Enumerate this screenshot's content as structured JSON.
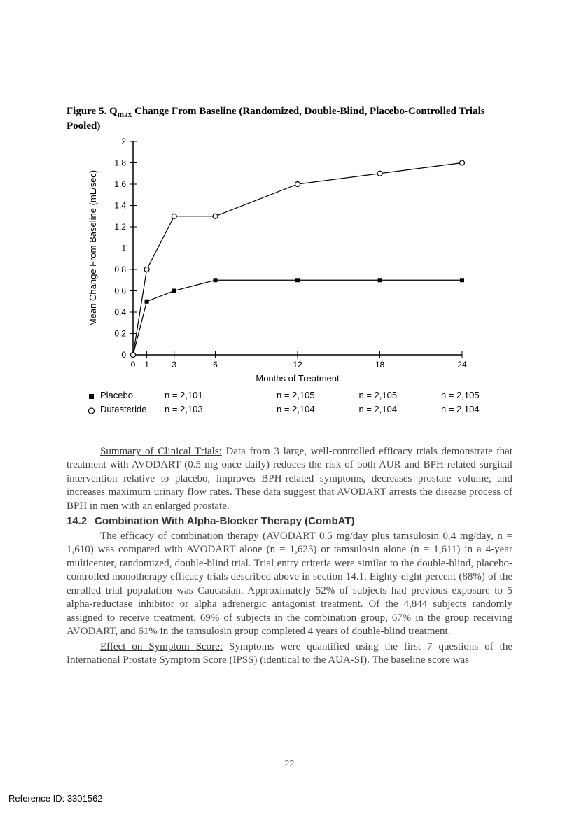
{
  "figure": {
    "label_prefix": "Figure 5. Q",
    "label_sub": "max",
    "label_rest": " Change From Baseline (Randomized, Double-Blind, Placebo-Controlled Trials Pooled)",
    "chart": {
      "type": "line",
      "background_color": "#ffffff",
      "axis_color": "#000000",
      "tick_color": "#000000",
      "text_color": "#000000",
      "font_family": "Arial",
      "axis_fontsize": 12,
      "label_fontsize": 13,
      "line_width": 1.2,
      "xlim": [
        0,
        24
      ],
      "ylim": [
        0,
        2
      ],
      "xticks": [
        0,
        1,
        3,
        6,
        12,
        18,
        24
      ],
      "yticks": [
        0,
        0.2,
        0.4,
        0.6,
        0.8,
        1.0,
        1.2,
        1.4,
        1.6,
        1.8,
        2.0
      ],
      "ytick_labels": [
        "0",
        "0.2",
        "0.4",
        "0.6",
        "0.8",
        "1",
        "1.2",
        "1.4",
        "1.6",
        "1.8",
        "2"
      ],
      "xlabel": "Months of Treatment",
      "ylabel": "Mean Change From Baseline (mL/sec)",
      "series": [
        {
          "name": "Placebo",
          "marker": "filled-square",
          "marker_size": 6,
          "line_color": "#000000",
          "x": [
            0,
            1,
            3,
            6,
            12,
            18,
            24
          ],
          "y": [
            0,
            0.5,
            0.6,
            0.7,
            0.7,
            0.7,
            0.7
          ]
        },
        {
          "name": "Dutasteride",
          "marker": "open-circle",
          "marker_size": 6,
          "line_color": "#000000",
          "x": [
            0,
            1,
            3,
            6,
            12,
            18,
            24
          ],
          "y": [
            0,
            0.8,
            1.3,
            1.3,
            1.6,
            1.7,
            1.8
          ]
        }
      ],
      "legend": {
        "placebo_label": "Placebo",
        "dutasteride_label": "Dutasteride",
        "n_values": {
          "placebo": {
            "m1": "n = 2,101",
            "m12": "n = 2,105",
            "m18": "n = 2,105",
            "m24": "n = 2,105"
          },
          "dutasteride": {
            "m1": "n = 2,103",
            "m12": "n = 2,104",
            "m18": "n = 2,104",
            "m24": "n = 2,104"
          }
        }
      }
    }
  },
  "summary": {
    "runin": "Summary of Clinical Trials:",
    "text": " Data from 3 large, well-controlled efficacy trials demonstrate that treatment with AVODART (0.5 mg once daily) reduces the risk of both AUR and BPH-related surgical intervention relative to placebo, improves BPH-related symptoms, decreases prostate volume, and increases maximum urinary flow rates. These data suggest that AVODART arrests the disease process of BPH in men with an enlarged prostate."
  },
  "section": {
    "number": "14.2",
    "title": "Combination With Alpha-Blocker Therapy (CombAT)"
  },
  "combat": {
    "text": "The efficacy of combination therapy (AVODART 0.5 mg/day plus tamsulosin 0.4 mg/day, n = 1,610) was compared with AVODART alone (n = 1,623) or tamsulosin alone (n = 1,611) in a 4-year multicenter, randomized, double-blind trial. Trial entry criteria were similar to the double-blind, placebo-controlled monotherapy efficacy trials described above in section 14.1. Eighty-eight percent (88%) of the enrolled trial population was Caucasian. Approximately 52% of subjects had previous exposure to 5 alpha-reductase inhibitor or alpha adrenergic antagonist treatment. Of the 4,844 subjects randomly assigned to receive treatment, 69% of subjects in the combination group, 67% in the group receiving AVODART, and 61% in the tamsulosin group completed 4 years of double-blind treatment."
  },
  "effect": {
    "runin": "Effect on Symptom Score:",
    "text": " Symptoms were quantified using the first 7 questions of the International Prostate Symptom Score (IPSS) (identical to the AUA-SI). The baseline score was"
  },
  "page_number": "22",
  "reference_id": "Reference ID: 3301562"
}
